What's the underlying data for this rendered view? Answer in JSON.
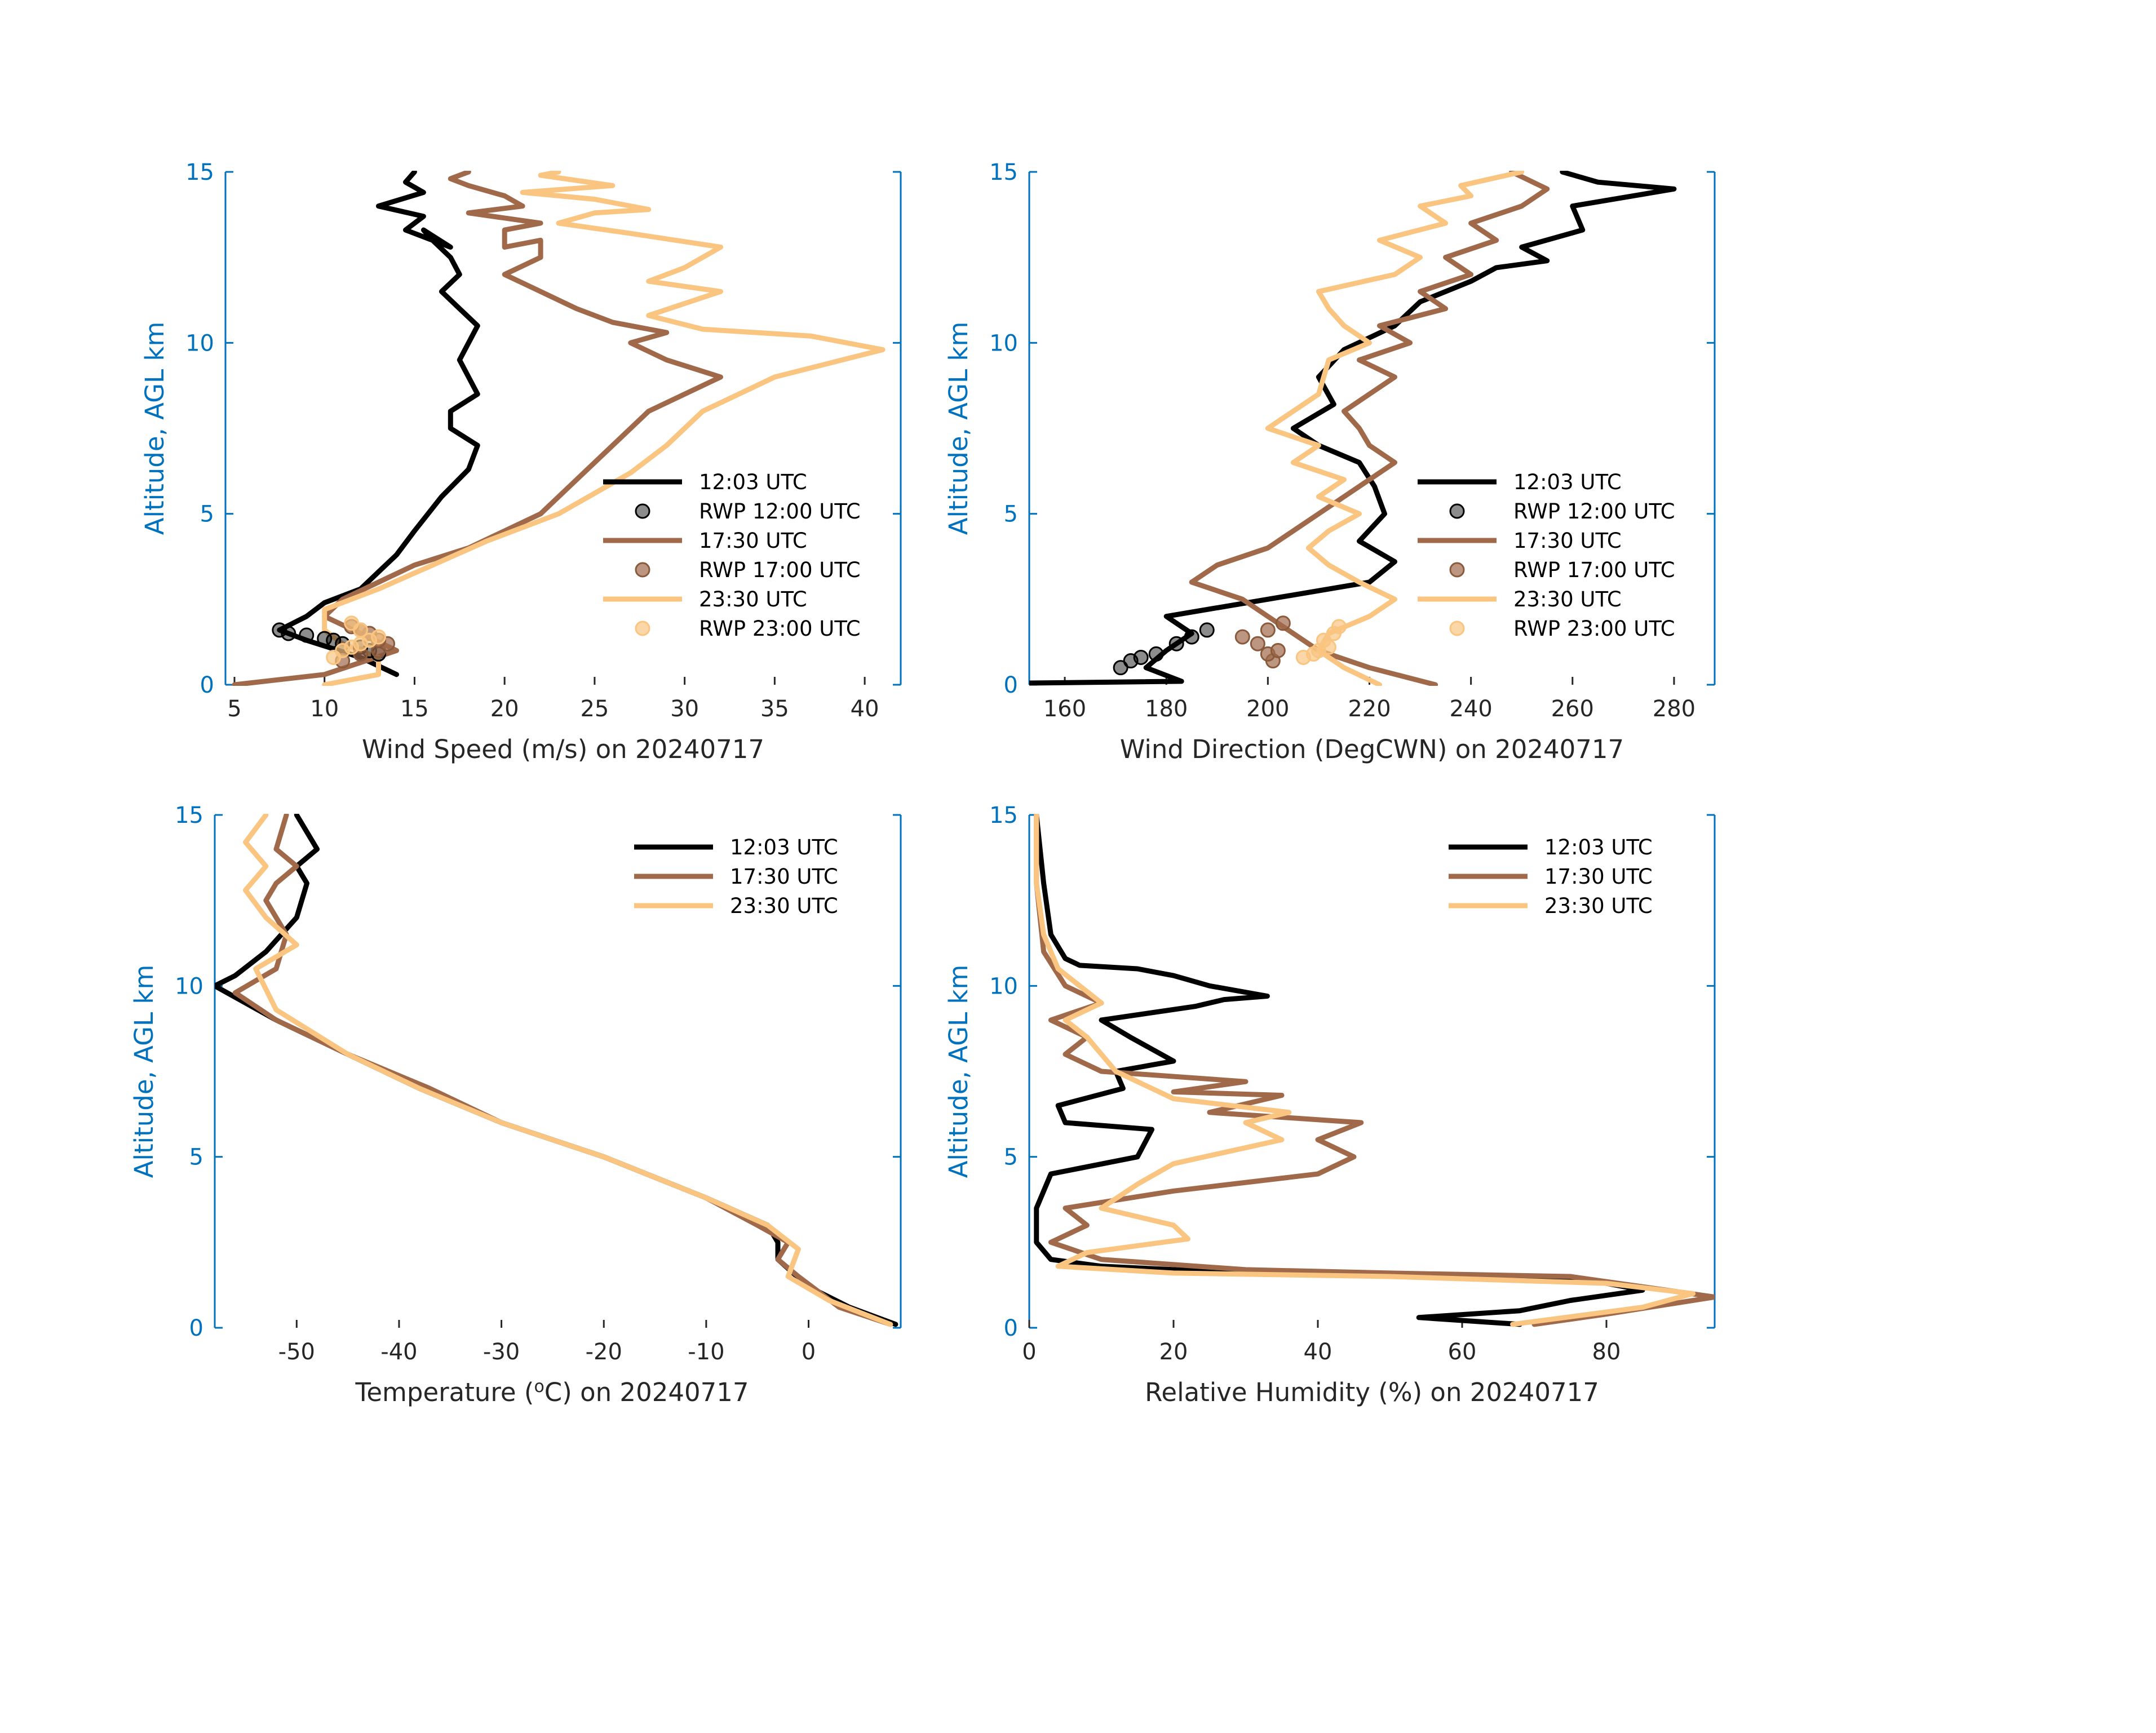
{
  "colors": {
    "axis": "#0072BD",
    "c1203": "#000000",
    "c1730": "#A0694A",
    "c2330": "#F9C580"
  },
  "chart_data": [
    {
      "type": "line",
      "xlabel": "Wind Speed (m/s) on 20240717",
      "ylabel": "Altitude, AGL km",
      "xlim": [
        4.5,
        42
      ],
      "ylim": [
        0,
        15
      ],
      "xticks": [
        5,
        10,
        15,
        20,
        25,
        30,
        35,
        40
      ],
      "yticks": [
        0,
        5,
        10,
        15
      ],
      "legend": [
        "12:03 UTC",
        "RWP 12:00 UTC",
        "17:30 UTC",
        "RWP 17:00 UTC",
        "23:30 UTC",
        "RWP 23:00 UTC"
      ],
      "series": [
        {
          "name": "12:03 UTC",
          "kind": "line",
          "color": "#000000",
          "x": [
            14,
            12,
            9,
            7.5,
            9,
            10,
            12,
            13,
            14,
            15,
            16.5,
            18,
            18.5,
            17,
            17,
            18.5,
            17.5,
            18.5,
            17.5,
            16.5,
            17.5,
            17,
            16,
            15.5,
            17,
            16,
            14.5,
            15.5,
            13,
            15.5,
            14.5,
            15
          ],
          "y": [
            0.3,
            0.8,
            1.3,
            1.6,
            2.0,
            2.4,
            2.8,
            3.3,
            3.8,
            4.5,
            5.5,
            6.3,
            7.0,
            7.5,
            8.0,
            8.5,
            9.5,
            10.5,
            11.0,
            11.5,
            12.0,
            12.5,
            13.0,
            13.3,
            12.8,
            13.0,
            13.3,
            13.7,
            14.0,
            14.4,
            14.7,
            15.0
          ]
        },
        {
          "name": "RWP 12:00 UTC",
          "kind": "points",
          "color": "#000000",
          "x": [
            7.5,
            8,
            9,
            10,
            10.5,
            11,
            12,
            12.5,
            13
          ],
          "y": [
            1.6,
            1.5,
            1.45,
            1.35,
            1.3,
            1.2,
            1.1,
            1.0,
            0.9
          ]
        },
        {
          "name": "17:30 UTC",
          "kind": "line",
          "color": "#A0694A",
          "x": [
            5,
            10,
            14,
            12,
            10,
            11,
            13,
            15,
            18,
            22,
            24,
            26,
            28,
            30,
            32,
            29,
            27,
            29,
            26,
            24,
            22,
            20,
            22,
            22,
            20,
            20,
            22,
            18,
            21,
            20,
            18,
            17,
            18
          ],
          "y": [
            0,
            0.3,
            1.0,
            1.5,
            2.0,
            2.5,
            3.0,
            3.5,
            4.0,
            5.0,
            6.0,
            7.0,
            8.0,
            8.5,
            9.0,
            9.5,
            10.0,
            10.3,
            10.6,
            11.0,
            11.5,
            12.0,
            12.5,
            13.0,
            12.8,
            13.3,
            13.5,
            13.8,
            14.0,
            14.3,
            14.6,
            14.8,
            15.0
          ]
        },
        {
          "name": "RWP 17:00 UTC",
          "kind": "points",
          "color": "#A0694A",
          "x": [
            11,
            12,
            13,
            13.5,
            13,
            12.5,
            12,
            11.5
          ],
          "y": [
            0.7,
            0.9,
            1.0,
            1.2,
            1.3,
            1.5,
            1.6,
            1.7
          ]
        },
        {
          "name": "23:30 UTC",
          "kind": "line",
          "color": "#F9C580",
          "x": [
            10,
            13,
            13,
            11,
            10,
            10,
            13,
            16,
            19,
            23,
            25,
            27,
            29,
            31,
            35,
            41,
            37,
            31,
            28,
            32,
            28,
            30,
            32,
            27,
            23,
            25,
            28,
            25,
            21,
            26,
            22,
            23
          ],
          "y": [
            0,
            0.3,
            0.8,
            1.2,
            1.6,
            2.2,
            2.8,
            3.5,
            4.2,
            5.0,
            5.6,
            6.2,
            7.0,
            8.0,
            9.0,
            9.8,
            10.2,
            10.4,
            10.8,
            11.5,
            11.8,
            12.2,
            12.8,
            13.2,
            13.5,
            13.8,
            13.9,
            14.2,
            14.4,
            14.6,
            14.9,
            15.0
          ]
        },
        {
          "name": "RWP 23:00 UTC",
          "kind": "points",
          "color": "#F9C580",
          "x": [
            10.5,
            11,
            11.5,
            12,
            12.5,
            13,
            12,
            11.5
          ],
          "y": [
            0.8,
            1.0,
            1.1,
            1.2,
            1.3,
            1.4,
            1.6,
            1.8
          ]
        }
      ]
    },
    {
      "type": "line",
      "xlabel": "Wind Direction (DegCWN) on 20240717",
      "ylabel": "Altitude, AGL km",
      "xlim": [
        153,
        288
      ],
      "ylim": [
        0,
        15
      ],
      "xticks": [
        160,
        180,
        200,
        220,
        240,
        260,
        280
      ],
      "yticks": [
        0,
        5,
        10,
        15
      ],
      "legend": [
        "12:03 UTC",
        "RWP 12:00 UTC",
        "17:30 UTC",
        "RWP 17:00 UTC",
        "23:30 UTC",
        "RWP 23:00 UTC"
      ],
      "series": [
        {
          "name": "12:03 UTC",
          "kind": "line",
          "color": "#000000",
          "x": [
            153,
            183,
            176,
            180,
            185,
            180,
            200,
            220,
            225,
            218,
            223,
            221,
            218,
            210,
            205,
            213,
            210,
            215,
            225,
            230,
            240,
            245,
            255,
            250,
            262,
            260,
            280,
            265,
            258
          ],
          "y": [
            0.05,
            0.1,
            0.5,
            1.0,
            1.5,
            2.0,
            2.5,
            3.0,
            3.6,
            4.2,
            5.0,
            5.8,
            6.5,
            7.0,
            7.5,
            8.2,
            9.0,
            9.8,
            10.5,
            11.2,
            11.8,
            12.2,
            12.4,
            12.8,
            13.3,
            14.0,
            14.5,
            14.7,
            15.0
          ]
        },
        {
          "name": "RWP 12:00 UTC",
          "kind": "points",
          "color": "#000000",
          "x": [
            171,
            173,
            175,
            178,
            182,
            185,
            188
          ],
          "y": [
            0.5,
            0.7,
            0.8,
            0.9,
            1.2,
            1.4,
            1.6
          ]
        },
        {
          "name": "17:30 UTC",
          "kind": "line",
          "color": "#A0694A",
          "x": [
            233,
            220,
            210,
            205,
            200,
            195,
            185,
            190,
            200,
            205,
            210,
            215,
            220,
            225,
            220,
            218,
            215,
            220,
            225,
            218,
            228,
            222,
            235,
            230,
            240,
            235,
            245,
            240,
            250,
            255,
            248
          ],
          "y": [
            0,
            0.5,
            1.0,
            1.5,
            2.0,
            2.5,
            3.0,
            3.5,
            4.0,
            4.5,
            5.0,
            5.5,
            6.0,
            6.5,
            7.0,
            7.5,
            8.0,
            8.5,
            9.0,
            9.5,
            10.0,
            10.5,
            11.0,
            11.5,
            12.0,
            12.5,
            13.0,
            13.5,
            14.0,
            14.5,
            15.0
          ]
        },
        {
          "name": "RWP 17:00 UTC",
          "kind": "points",
          "color": "#A0694A",
          "x": [
            201,
            200,
            202,
            198,
            195,
            200,
            203
          ],
          "y": [
            0.7,
            0.9,
            1.0,
            1.2,
            1.4,
            1.6,
            1.8
          ]
        },
        {
          "name": "23:30 UTC",
          "kind": "line",
          "color": "#F9C580",
          "x": [
            222,
            215,
            210,
            212,
            220,
            225,
            218,
            212,
            208,
            212,
            218,
            210,
            215,
            205,
            210,
            200,
            210,
            212,
            220,
            215,
            212,
            210,
            225,
            230,
            222,
            235,
            230,
            240,
            238,
            250
          ],
          "y": [
            0,
            0.5,
            1.0,
            1.5,
            2.0,
            2.5,
            3.0,
            3.5,
            4.0,
            4.5,
            5.0,
            5.5,
            6.0,
            6.5,
            7.0,
            7.5,
            8.5,
            9.5,
            10.0,
            10.5,
            11.0,
            11.5,
            12.0,
            12.5,
            13.0,
            13.5,
            14.0,
            14.3,
            14.6,
            15.0
          ]
        },
        {
          "name": "RWP 23:00 UTC",
          "kind": "points",
          "color": "#F9C580",
          "x": [
            207,
            209,
            210,
            212,
            211,
            213,
            214
          ],
          "y": [
            0.8,
            0.9,
            1.0,
            1.1,
            1.3,
            1.5,
            1.7
          ]
        }
      ]
    },
    {
      "type": "line",
      "xlabel_prefix": "Temperature (",
      "xlabel_sup": "o",
      "xlabel_suffix": "C) on 20240717",
      "ylabel": "Altitude, AGL km",
      "xlim": [
        -58,
        9
      ],
      "ylim": [
        0,
        15
      ],
      "xticks": [
        -50,
        -40,
        -30,
        -20,
        -10,
        0
      ],
      "yticks": [
        0,
        5,
        10,
        15
      ],
      "legend": [
        "12:03 UTC",
        "17:30 UTC",
        "23:30 UTC"
      ],
      "series": [
        {
          "name": "12:03 UTC",
          "kind": "line",
          "color": "#000000",
          "x": [
            8.5,
            4,
            0,
            -3,
            -3,
            -4,
            -10,
            -20,
            -30,
            -38,
            -45,
            -52,
            -58,
            -56,
            -53,
            -50,
            -49,
            -50,
            -48,
            -50
          ],
          "y": [
            0.1,
            0.6,
            1.2,
            2.0,
            2.5,
            3.0,
            3.8,
            5.0,
            6.0,
            7.0,
            8.0,
            9.0,
            10.0,
            10.3,
            11.0,
            12.0,
            13.0,
            13.5,
            14.0,
            15.0
          ]
        },
        {
          "name": "17:30 UTC",
          "kind": "line",
          "color": "#A0694A",
          "x": [
            8,
            3,
            -1,
            -3,
            -2,
            -5,
            -10,
            -20,
            -30,
            -37,
            -45,
            -52,
            -56,
            -52,
            -51,
            -53,
            -52,
            -50,
            -52,
            -51
          ],
          "y": [
            0.1,
            0.6,
            1.5,
            2.0,
            2.5,
            3.0,
            3.8,
            5.0,
            6.0,
            7.0,
            8.0,
            9.0,
            9.8,
            10.5,
            11.5,
            12.5,
            13.0,
            13.5,
            14.0,
            15.0
          ]
        },
        {
          "name": "23:30 UTC",
          "kind": "line",
          "color": "#F9C580",
          "x": [
            8,
            2,
            -2,
            -1,
            -4,
            -10,
            -20,
            -30,
            -38,
            -45,
            -52,
            -54,
            -50,
            -53,
            -55,
            -53,
            -55,
            -53
          ],
          "y": [
            0.1,
            0.8,
            1.5,
            2.3,
            3.0,
            3.8,
            5.0,
            6.0,
            7.0,
            8.0,
            9.3,
            10.5,
            11.2,
            12.0,
            12.8,
            13.5,
            14.2,
            15.0
          ]
        }
      ]
    },
    {
      "type": "line",
      "xlabel": "Relative Humidity (%) on 20240717",
      "ylabel": "Altitude, AGL km",
      "xlim": [
        0,
        95
      ],
      "ylim": [
        0,
        15
      ],
      "xticks": [
        0,
        20,
        40,
        60,
        80
      ],
      "yticks": [
        0,
        5,
        10,
        15
      ],
      "legend": [
        "12:03 UTC",
        "17:30 UTC",
        "23:30 UTC"
      ],
      "series": [
        {
          "name": "12:03 UTC",
          "kind": "line",
          "color": "#000000",
          "x": [
            68,
            54,
            68,
            75,
            85,
            80,
            70,
            30,
            10,
            3,
            1,
            1,
            3,
            15,
            17,
            5,
            4,
            13,
            12,
            20,
            14,
            10,
            23,
            27,
            33,
            25,
            20,
            15,
            7,
            5,
            3,
            2,
            1
          ],
          "y": [
            0.1,
            0.3,
            0.5,
            0.8,
            1.1,
            1.3,
            1.5,
            1.6,
            1.8,
            2.0,
            2.5,
            3.5,
            4.5,
            5.0,
            5.8,
            6.0,
            6.5,
            7.0,
            7.5,
            7.8,
            8.5,
            9.0,
            9.4,
            9.6,
            9.7,
            10.0,
            10.3,
            10.5,
            10.6,
            10.8,
            11.5,
            13.0,
            15.0
          ]
        },
        {
          "name": "17:30 UTC",
          "kind": "line",
          "color": "#A0694A",
          "x": [
            70,
            80,
            95,
            85,
            75,
            50,
            30,
            10,
            3,
            8,
            5,
            20,
            40,
            45,
            40,
            46,
            25,
            35,
            20,
            30,
            10,
            5,
            8,
            3,
            10,
            5,
            2,
            1,
            1
          ],
          "y": [
            0.1,
            0.4,
            0.9,
            1.2,
            1.5,
            1.6,
            1.7,
            2.0,
            2.5,
            3.0,
            3.5,
            4.0,
            4.5,
            5.0,
            5.5,
            6.0,
            6.3,
            6.8,
            6.9,
            7.2,
            7.5,
            8.0,
            8.5,
            9.0,
            9.5,
            10.0,
            11.0,
            13.0,
            15.0
          ]
        },
        {
          "name": "23:30 UTC",
          "kind": "line",
          "color": "#F9C580",
          "x": [
            67,
            85,
            92,
            80,
            50,
            20,
            4,
            8,
            22,
            20,
            10,
            15,
            20,
            35,
            30,
            36,
            20,
            12,
            8,
            5,
            10,
            4,
            2,
            1,
            1
          ],
          "y": [
            0.1,
            0.6,
            1.0,
            1.3,
            1.5,
            1.6,
            1.8,
            2.2,
            2.6,
            3.0,
            3.5,
            4.2,
            4.8,
            5.5,
            6.0,
            6.3,
            6.7,
            7.5,
            8.5,
            9.0,
            9.5,
            10.5,
            11.5,
            13.0,
            15.0
          ]
        }
      ]
    }
  ]
}
